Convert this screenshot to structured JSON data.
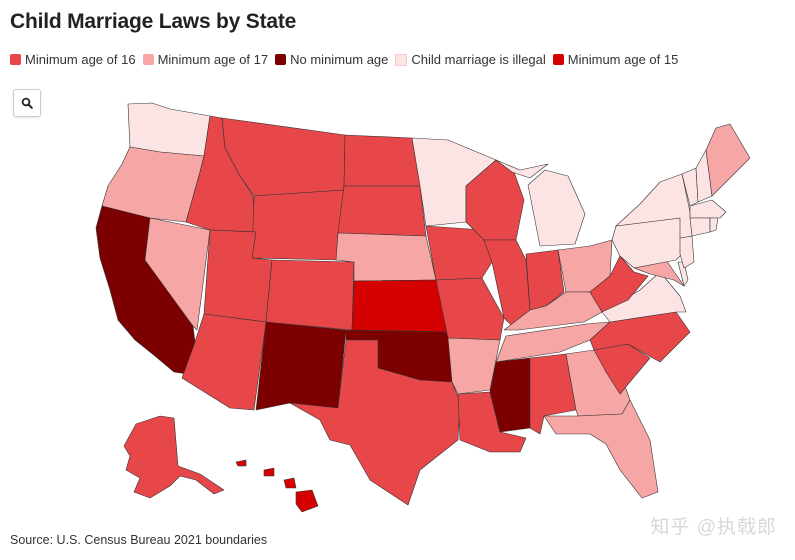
{
  "title": "Child Marriage Laws by State",
  "legend": [
    {
      "key": "16",
      "label": "Minimum age of 16",
      "color": "#e8474a"
    },
    {
      "key": "17",
      "label": "Minimum age of 17",
      "color": "#f6a6a4"
    },
    {
      "key": "none",
      "label": "No minimum age",
      "color": "#7c0000"
    },
    {
      "key": "illegal",
      "label": "Child marriage is illegal",
      "color": "#fde4e4"
    },
    {
      "key": "15",
      "label": "Minimum age of 15",
      "color": "#d50000"
    }
  ],
  "search_icon": "search-icon",
  "states": {
    "WA": "illegal",
    "OR": "17",
    "CA": "none",
    "NV": "17",
    "ID": "16",
    "MT": "16",
    "WY": "16",
    "UT": "16",
    "AZ": "16",
    "CO": "16",
    "NM": "none",
    "ND": "16",
    "SD": "16",
    "NE": "17",
    "KS": "15",
    "OK": "none",
    "TX": "16",
    "MN": "illegal",
    "IA": "16",
    "MO": "16",
    "AR": "17",
    "LA": "16",
    "WI": "16",
    "IL": "16",
    "MI": "illegal",
    "IN": "16",
    "OH": "17",
    "KY": "17",
    "TN": "17",
    "MS": "none",
    "AL": "16",
    "GA": "17",
    "FL": "17",
    "SC": "16",
    "NC": "16",
    "VA": "illegal",
    "WV": "16",
    "PA": "illegal",
    "NY": "illegal",
    "ME": "17",
    "NH": "illegal",
    "VT": "illegal",
    "MA": "illegal",
    "CT": "illegal",
    "RI": "illegal",
    "NJ": "illegal",
    "DE": "illegal",
    "MD": "17",
    "AK": "16",
    "HI": "15"
  },
  "source": "Source: U.S. Census Bureau 2021 boundaries",
  "watermark": "知乎 @执戟郎"
}
